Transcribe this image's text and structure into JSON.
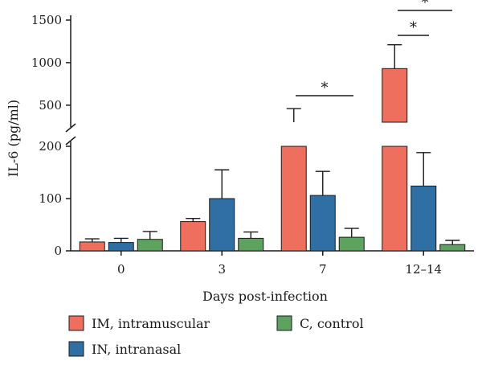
{
  "chart_data": {
    "type": "bar",
    "ylabel": "IL-6 (pg/ml)",
    "xlabel": "Days post-infection",
    "categories": [
      "0",
      "3",
      "7",
      "12–14"
    ],
    "y_axis": {
      "broken": true,
      "lower_range": [
        0,
        200
      ],
      "upper_range": [
        300,
        1500
      ],
      "lower_ticks": [
        "0",
        "100",
        "200"
      ],
      "upper_ticks": [
        "500",
        "1000",
        "1500"
      ],
      "lower_tick_values": [
        0,
        100,
        200
      ],
      "upper_tick_values": [
        500,
        1000,
        1500
      ]
    },
    "series": [
      {
        "name": "IM, intramuscular",
        "color": "#ef6f5e",
        "values": [
          17,
          56,
          300,
          930
        ],
        "errors": [
          6,
          6,
          160,
          280
        ]
      },
      {
        "name": "IN, intranasal",
        "color": "#2f6fa3",
        "values": [
          16,
          100,
          106,
          124
        ],
        "errors": [
          8,
          55,
          46,
          64
        ]
      },
      {
        "name": "C, control",
        "color": "#5da35f",
        "values": [
          22,
          24,
          26,
          12
        ],
        "errors": [
          15,
          12,
          17,
          8
        ]
      }
    ],
    "significance": [
      {
        "category": "7",
        "label": "*"
      },
      {
        "category": "12–14",
        "label": "*"
      },
      {
        "category": "12–14",
        "label": "*"
      }
    ],
    "legend_position": "bottom"
  }
}
